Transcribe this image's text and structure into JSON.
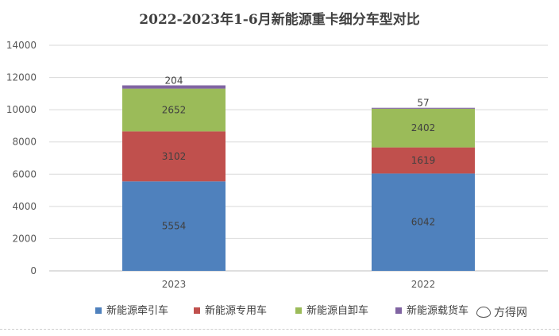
{
  "chart_data": {
    "type": "bar",
    "stacked": true,
    "title": "2022-2023年1-6月新能源重卡细分车型对比",
    "categories": [
      "2023",
      "2022"
    ],
    "ylim": [
      0,
      14000
    ],
    "yticks": [
      0,
      2000,
      4000,
      6000,
      8000,
      10000,
      12000,
      14000
    ],
    "grid": true,
    "legend_position": "bottom",
    "series": [
      {
        "name": "新能源牵引车",
        "color": "#4f81bd",
        "values": [
          5554,
          6042
        ]
      },
      {
        "name": "新能源专用车",
        "color": "#c0504d",
        "values": [
          3102,
          1619
        ]
      },
      {
        "name": "新能源自卸车",
        "color": "#9bbb59",
        "values": [
          2652,
          2402
        ]
      },
      {
        "name": "新能源载货车",
        "color": "#8064a2",
        "values": [
          204,
          57
        ]
      }
    ]
  },
  "watermark": {
    "text": "方得网",
    "icon": "wechat-icon"
  }
}
